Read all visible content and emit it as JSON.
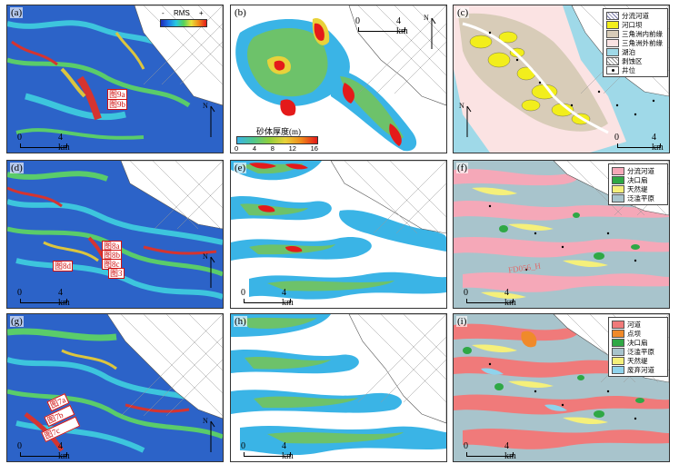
{
  "panels": [
    {
      "label": "(a)",
      "type": "rms"
    },
    {
      "label": "(b)",
      "type": "thickness"
    },
    {
      "label": "(c)",
      "type": "facies"
    },
    {
      "label": "(d)",
      "type": "rms"
    },
    {
      "label": "(e)",
      "type": "thickness"
    },
    {
      "label": "(f)",
      "type": "facies"
    },
    {
      "label": "(g)",
      "type": "rms"
    },
    {
      "label": "(h)",
      "type": "thickness"
    },
    {
      "label": "(i)",
      "type": "facies"
    }
  ],
  "scale": {
    "zero": "0",
    "four": "4 km"
  },
  "north_letter": "N",
  "rms_legend": {
    "minus": "-",
    "title": "RMS",
    "plus": "+"
  },
  "thickness_legend": {
    "title": "砂体厚度(m)",
    "ticks": [
      "0",
      "4",
      "8",
      "12",
      "16"
    ]
  },
  "legend_c": [
    {
      "label": "分流河道",
      "color": "#ffffff",
      "pattern": "hatch"
    },
    {
      "label": "河口坝",
      "color": "#f2ee1c"
    },
    {
      "label": "三角洲内前缘",
      "color": "#d8ccb8"
    },
    {
      "label": "三角洲外前缘",
      "color": "#fbe3e3"
    },
    {
      "label": "湖泊",
      "color": "#9fd9e8"
    },
    {
      "label": "剥蚀区",
      "color": "#ffffff",
      "pattern": "cross"
    },
    {
      "label": "井位",
      "color": "#000000",
      "pattern": "dot"
    }
  ],
  "legend_f": [
    {
      "label": "分流河道",
      "color": "#f5a8b8"
    },
    {
      "label": "决口扇",
      "color": "#2fa845"
    },
    {
      "label": "天然堤",
      "color": "#f5f07a"
    },
    {
      "label": "泛滥平原",
      "color": "#a8c4cc"
    }
  ],
  "legend_i": [
    {
      "label": "河道",
      "color": "#f07a7a"
    },
    {
      "label": "点坝",
      "color": "#f08a2a"
    },
    {
      "label": "决口扇",
      "color": "#2fa845"
    },
    {
      "label": "泛滥平原",
      "color": "#a8c4cc"
    },
    {
      "label": "天然堤",
      "color": "#f5f07a"
    },
    {
      "label": "废弃河道",
      "color": "#8fd3ec"
    }
  ],
  "callouts_a": [
    "图9a",
    "图9b"
  ],
  "callouts_d": [
    "图8a",
    "图8b",
    "图8c",
    "图8d",
    "图3"
  ],
  "callouts_g": [
    "图7a",
    "图7b",
    "图7c"
  ],
  "well_label_f": "FD056_H"
}
